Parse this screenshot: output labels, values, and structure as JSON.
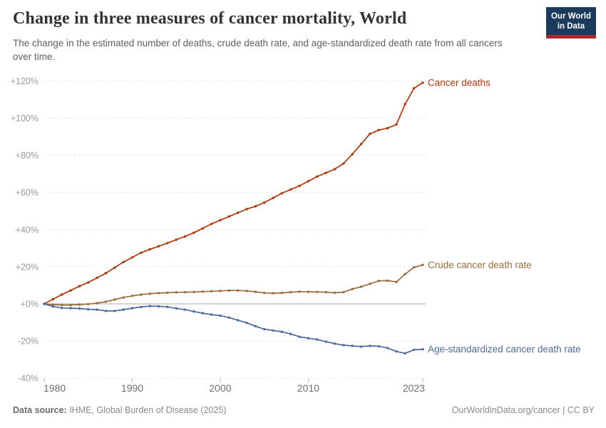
{
  "header": {
    "title": "Change in three measures of cancer mortality, World",
    "subtitle": "The change in the estimated number of deaths, crude death rate, and age-standardized death rate from all cancers over time.",
    "logo": {
      "line1": "Our World",
      "line2": "in Data"
    }
  },
  "chart_data": {
    "type": "line",
    "x": [
      1980,
      1981,
      1982,
      1983,
      1984,
      1985,
      1986,
      1987,
      1988,
      1989,
      1990,
      1991,
      1992,
      1993,
      1994,
      1995,
      1996,
      1997,
      1998,
      1999,
      2000,
      2001,
      2002,
      2003,
      2004,
      2005,
      2006,
      2007,
      2008,
      2009,
      2010,
      2011,
      2012,
      2013,
      2014,
      2015,
      2016,
      2017,
      2018,
      2019,
      2020,
      2021,
      2022,
      2023
    ],
    "x_tick_labels": [
      1980,
      1990,
      2000,
      2010,
      2023
    ],
    "ylim": [
      -40,
      120
    ],
    "ytick_step": 20,
    "ytick_format": "signed percent",
    "grid": "horizontal dashed",
    "legend_position": "line-end labels",
    "series": [
      {
        "name": "Cancer deaths",
        "color": "#b13507",
        "values": [
          0,
          2.5,
          5,
          7.2,
          9.5,
          11.5,
          14,
          16.5,
          19.5,
          22.5,
          25,
          27.5,
          29.3,
          31,
          32.7,
          34.5,
          36.3,
          38.3,
          40.6,
          43,
          45,
          47,
          49,
          51,
          52.5,
          54.5,
          57,
          59.5,
          61.5,
          63.5,
          66,
          68.5,
          70.5,
          72.5,
          75.5,
          80.5,
          86,
          91.5,
          93.5,
          94.5,
          96.5,
          107.5,
          116,
          119
        ]
      },
      {
        "name": "Crude cancer death rate",
        "color": "#996d39",
        "values": [
          0,
          -0.4,
          -0.6,
          -0.6,
          -0.4,
          -0.1,
          0.4,
          1.2,
          2.3,
          3.4,
          4.3,
          5,
          5.5,
          5.8,
          6,
          6.2,
          6.3,
          6.4,
          6.6,
          6.8,
          7,
          7.2,
          7.2,
          7,
          6.5,
          5.9,
          5.7,
          5.9,
          6.3,
          6.6,
          6.5,
          6.4,
          6.3,
          6,
          6.3,
          8,
          9.2,
          10.8,
          12.4,
          12.5,
          11.8,
          16,
          19.7,
          21
        ]
      },
      {
        "name": "Age-standardized cancer death rate",
        "color": "#4c6a9c",
        "values": [
          0,
          -1.4,
          -2.2,
          -2.3,
          -2.5,
          -2.9,
          -3.1,
          -3.8,
          -3.8,
          -3.1,
          -2.3,
          -1.7,
          -1.2,
          -1.3,
          -1.6,
          -2.4,
          -3.1,
          -4.1,
          -5,
          -5.8,
          -6.3,
          -7.4,
          -8.8,
          -10.2,
          -12,
          -13.6,
          -14.3,
          -15,
          -16.2,
          -17.7,
          -18.5,
          -19.2,
          -20.3,
          -21.4,
          -22.2,
          -22.6,
          -23,
          -22.6,
          -22.8,
          -23.7,
          -25.6,
          -26.6,
          -24.7,
          -24.4
        ]
      }
    ]
  },
  "footer": {
    "source_label": "Data source:",
    "source_text": " IHME, Global Burden of Disease (2025)",
    "credit": "OurWorldinData.org/cancer | CC BY"
  }
}
